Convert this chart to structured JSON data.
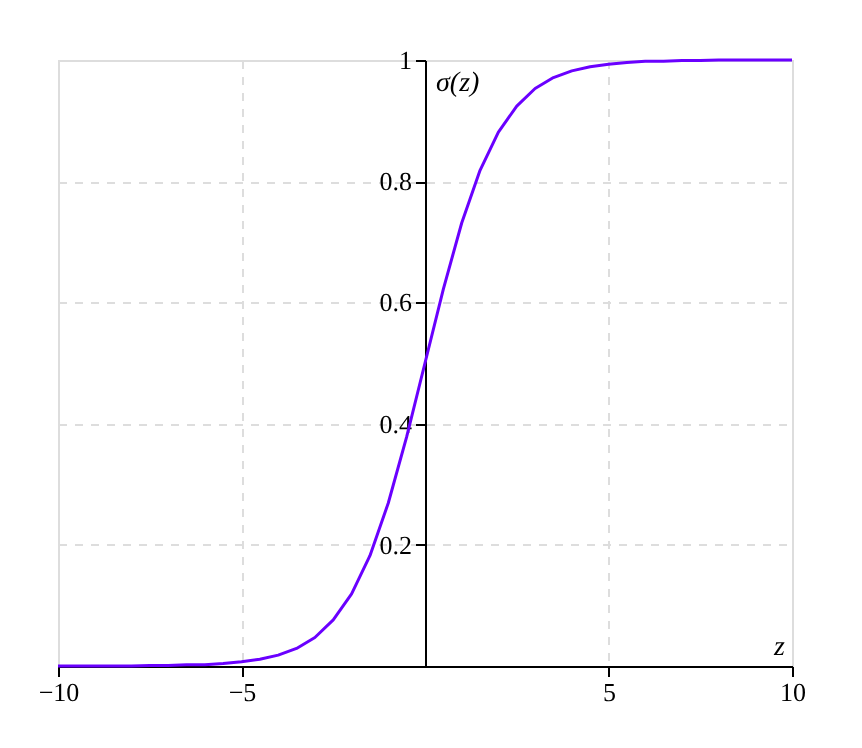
{
  "chart_data": {
    "type": "line",
    "xlabel": "z",
    "ylabel": "σ(z)",
    "x": [
      -10,
      -9.5,
      -9,
      -8.5,
      -8,
      -7.5,
      -7,
      -6.5,
      -6,
      -5.5,
      -5,
      -4.5,
      -4,
      -3.5,
      -3,
      -2.5,
      -2,
      -1.5,
      -1,
      -0.5,
      0,
      0.5,
      1,
      1.5,
      2,
      2.5,
      3,
      3.5,
      4,
      4.5,
      5,
      5.5,
      6,
      6.5,
      7,
      7.5,
      8,
      8.5,
      9,
      9.5,
      10
    ],
    "series": [
      {
        "color": "#6a00ff",
        "values": [
          0.0,
          0.0,
          0.0,
          0.0,
          0.0,
          0.001,
          0.001,
          0.002,
          0.002,
          0.004,
          0.007,
          0.011,
          0.018,
          0.029,
          0.047,
          0.076,
          0.119,
          0.182,
          0.269,
          0.378,
          0.5,
          0.622,
          0.731,
          0.818,
          0.881,
          0.924,
          0.953,
          0.971,
          0.982,
          0.989,
          0.993,
          0.996,
          0.998,
          0.998,
          0.999,
          0.999,
          1.0,
          1.0,
          1.0,
          1.0,
          1.0
        ]
      }
    ],
    "xlim": [
      -10,
      10
    ],
    "ylim": [
      0,
      1
    ],
    "xticks": [
      -10,
      -5,
      5,
      10
    ],
    "yticks": [
      0.2,
      0.4,
      0.6,
      0.8,
      1
    ],
    "grid": true,
    "line_style": "solid",
    "marker": "none"
  }
}
